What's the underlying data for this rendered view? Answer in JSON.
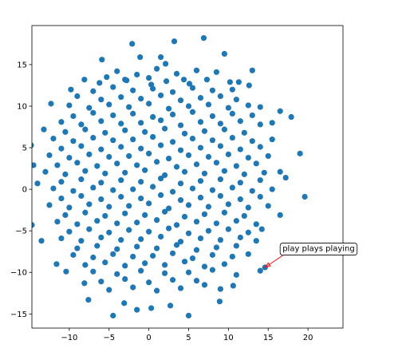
{
  "chart_data": {
    "type": "scatter",
    "color": "#1f77b4",
    "xlim": [
      -14.7,
      24.4
    ],
    "ylim": [
      -16.7,
      19.7
    ],
    "xticks": [
      {
        "value": -10,
        "label": "−10"
      },
      {
        "value": -5,
        "label": "−5"
      },
      0,
      5,
      10,
      15,
      20
    ],
    "yticks": [
      {
        "value": -15,
        "label": "−15"
      },
      {
        "value": -10,
        "label": "−10"
      },
      {
        "value": -5,
        "label": "−5"
      },
      0,
      5,
      10,
      15
    ],
    "annotation": {
      "text": "play plays playing",
      "xy": [
        14.6,
        -9.4
      ],
      "xytext": [
        16.8,
        -7.1
      ],
      "arrow_color": "#e41a1c"
    },
    "x": [
      6.9,
      3.2,
      -2.1,
      -5.9,
      -1.1,
      1.5,
      9.5,
      2.1,
      13,
      -8.1,
      -5.3,
      -3,
      0,
      4.4,
      11.3,
      12.6,
      -12.3,
      -9.8,
      16.5,
      17.9,
      -13.2,
      -14.8,
      19,
      -14.5,
      19.6,
      -14,
      -14.7,
      -13.5,
      -11.6,
      -10.4,
      -8.1,
      -7.6,
      -4.5,
      -3.1,
      -1.5,
      0.3,
      2.7,
      5,
      8.9,
      7,
      10.6,
      14,
      14.6,
      14.2,
      16.5,
      17.2,
      -4,
      -1.5,
      1,
      3.5,
      6,
      8.5,
      -6.2,
      -2.8,
      0.3,
      2.2,
      5.1,
      7.3,
      10.2,
      -7,
      -4.5,
      -2,
      0.5,
      3,
      5.5,
      8,
      10.5,
      -9,
      -6,
      -3.5,
      -1,
      1.5,
      4,
      6.5,
      9,
      11,
      -10,
      -7.5,
      -5,
      -2.5,
      0,
      2.5,
      5,
      7.5,
      10,
      12.5,
      14,
      -9.5,
      -7,
      -4.5,
      -2,
      0.5,
      3,
      5.5,
      8,
      10.5,
      13,
      -11,
      -8.5,
      -6,
      -3.5,
      -1,
      1.5,
      4,
      6.5,
      9,
      11.5,
      14,
      15.5,
      -10.5,
      -8,
      -5.5,
      -3,
      -0.5,
      2,
      4.5,
      7,
      9.5,
      12,
      -12,
      -9.5,
      -7,
      -4.5,
      -2,
      0.5,
      3,
      5.5,
      8,
      10.5,
      13,
      15.5,
      -11,
      -8.5,
      -6,
      -3.5,
      -1,
      1.5,
      4,
      6.5,
      9,
      11.5,
      14,
      -12.5,
      -10,
      -7.5,
      -5,
      -2.5,
      0,
      2.5,
      5,
      7.5,
      10,
      12.5,
      15,
      -11.5,
      -9,
      -6.5,
      -4,
      -1.5,
      1,
      3.5,
      6,
      8.5,
      11,
      13.5,
      -13,
      -10.5,
      -8,
      -5.5,
      -3,
      -0.5,
      2,
      4.5,
      7,
      9.5,
      12,
      14.5,
      16.5,
      -11,
      -8.5,
      -6,
      -3.5,
      -1,
      1.5,
      4,
      6.5,
      9,
      11.5,
      14,
      -12,
      -9.5,
      -7,
      -4.5,
      -2,
      0.5,
      3,
      5.5,
      8,
      10.5,
      13,
      15.5,
      -11,
      -8.5,
      -6,
      -3.5,
      -1,
      1.5,
      4,
      6.5,
      9,
      11.5,
      14,
      -12.5,
      -10,
      -7.5,
      -5,
      -2.5,
      0,
      2.5,
      5,
      7.5,
      10,
      12.5,
      15,
      -10.5,
      -8,
      -5.5,
      -3,
      -0.5,
      2,
      4.5,
      7,
      9.5,
      12,
      -11.5,
      -9,
      -6.5,
      -4,
      -1.5,
      1,
      3.5,
      6,
      8.5,
      11,
      13.5,
      -10,
      -7.5,
      -5,
      -2.5,
      0,
      2.5,
      5,
      7.5,
      10,
      12.5,
      -11,
      -8.5,
      -6,
      -3.5,
      -1,
      1.5,
      4,
      6.5,
      9,
      11.5,
      13.5,
      -9,
      -6.5,
      -4,
      -1.5,
      1,
      3.5,
      6,
      8.5,
      11,
      -9.5,
      -7,
      -4.5,
      -2,
      0.5,
      3,
      5.5,
      8,
      10.5,
      12.5,
      -8,
      -5.5,
      -3,
      -0.5,
      2,
      4.5,
      7,
      9.5,
      -7,
      -4,
      -1,
      2,
      5,
      8,
      11,
      -6,
      -3,
      0,
      3,
      6,
      -5,
      -2,
      1,
      4,
      9
    ],
    "values": [
      18.2,
      17.8,
      17.5,
      15.6,
      15.9,
      15.9,
      16.3,
      15.1,
      14.3,
      13.2,
      13.5,
      13.2,
      13.4,
      13.2,
      12.9,
      12.5,
      10.3,
      12,
      9.4,
      8.7,
      7.2,
      5.3,
      4.3,
      2.9,
      -0.9,
      0.7,
      -4.3,
      -6.2,
      -9,
      -9.9,
      -11.3,
      -13.3,
      -15.2,
      -13.7,
      -14.5,
      -14.3,
      -14,
      -15.2,
      -13.5,
      -11.5,
      -11.6,
      -9.8,
      -9.4,
      -4.8,
      -3.1,
      1.4,
      14.2,
      13.8,
      14.5,
      13.9,
      14.3,
      14.1,
      12.8,
      13.1,
      12.6,
      13.0,
      12.7,
      13.2,
      12.9,
      11.8,
      12.3,
      11.9,
      12.1,
      11.7,
      12.2,
      11.9,
      12.0,
      11.2,
      10.8,
      11.1,
      10.9,
      11.3,
      10.7,
      11.0,
      11.2,
      10.8,
      10.1,
      9.8,
      10.2,
      9.9,
      10.3,
      9.7,
      10.0,
      10.2,
      9.8,
      10.1,
      9.9,
      8.8,
      9.2,
      8.9,
      9.1,
      8.7,
      9.0,
      9.3,
      8.8,
      9.1,
      8.9,
      8.1,
      7.8,
      8.2,
      7.9,
      8.0,
      8.3,
      7.7,
      8.1,
      7.9,
      8.2,
      7.8,
      8.0,
      6.9,
      7.2,
      6.8,
      7.1,
      6.9,
      7.3,
      6.7,
      7.0,
      7.2,
      6.8,
      6.1,
      5.8,
      6.2,
      5.9,
      6.0,
      6.3,
      5.7,
      6.1,
      5.9,
      6.2,
      5.8,
      6.0,
      4.9,
      5.2,
      4.8,
      5.1,
      4.9,
      5.3,
      4.7,
      5.0,
      5.2,
      4.8,
      5.1,
      4.1,
      3.8,
      4.2,
      3.9,
      4.0,
      4.3,
      3.7,
      4.1,
      3.9,
      4.2,
      3.8,
      4.0,
      2.9,
      3.2,
      2.8,
      3.1,
      2.9,
      3.3,
      2.7,
      3.0,
      3.2,
      2.8,
      3.1,
      2.1,
      1.8,
      2.2,
      1.9,
      2.0,
      2.3,
      1.7,
      2.1,
      1.9,
      2.2,
      1.8,
      2.0,
      2.1,
      0.9,
      1.2,
      0.8,
      1.1,
      0.9,
      1.3,
      0.7,
      1.0,
      1.2,
      0.8,
      1.1,
      0.1,
      -0.2,
      0.2,
      -0.1,
      0.0,
      0.3,
      -0.3,
      0.1,
      -0.1,
      0.2,
      -0.2,
      0.0,
      -1.1,
      -0.8,
      -1.2,
      -0.9,
      -1.1,
      -0.7,
      -1.3,
      -1.0,
      -0.8,
      -1.2,
      -0.9,
      -1.9,
      -2.2,
      -1.8,
      -2.1,
      -2.0,
      -1.7,
      -2.3,
      -1.9,
      -2.1,
      -1.8,
      -2.2,
      -2.0,
      -3.1,
      -2.8,
      -3.2,
      -2.9,
      -3.1,
      -2.7,
      -3.3,
      -3.0,
      -2.8,
      -3.2,
      -3.9,
      -4.2,
      -3.8,
      -4.1,
      -4.0,
      -3.7,
      -4.3,
      -3.9,
      -4.1,
      -3.8,
      -4.2,
      -5.1,
      -4.8,
      -5.2,
      -4.9,
      -5.1,
      -4.7,
      -5.3,
      -5.0,
      -4.8,
      -5.2,
      -5.9,
      -6.2,
      -5.8,
      -6.1,
      -6.0,
      -5.7,
      -6.3,
      -5.9,
      -6.1,
      -5.8,
      -6.2,
      -7.1,
      -6.8,
      -7.2,
      -6.9,
      -7.1,
      -6.7,
      -7.3,
      -7.0,
      -6.8,
      -7.9,
      -8.2,
      -7.8,
      -8.1,
      -8.0,
      -7.7,
      -8.3,
      -7.9,
      -8.1,
      -7.8,
      -9.1,
      -8.8,
      -9.2,
      -8.9,
      -9.1,
      -8.7,
      -9.3,
      -9.0,
      -9.9,
      -10.2,
      -9.8,
      -10.1,
      -10.0,
      -9.7,
      -10.3,
      -11.1,
      -10.8,
      -11.2,
      -10.9,
      -11.0,
      -12.1,
      -11.8,
      -12.2,
      -11.9,
      -12.0
    ]
  }
}
